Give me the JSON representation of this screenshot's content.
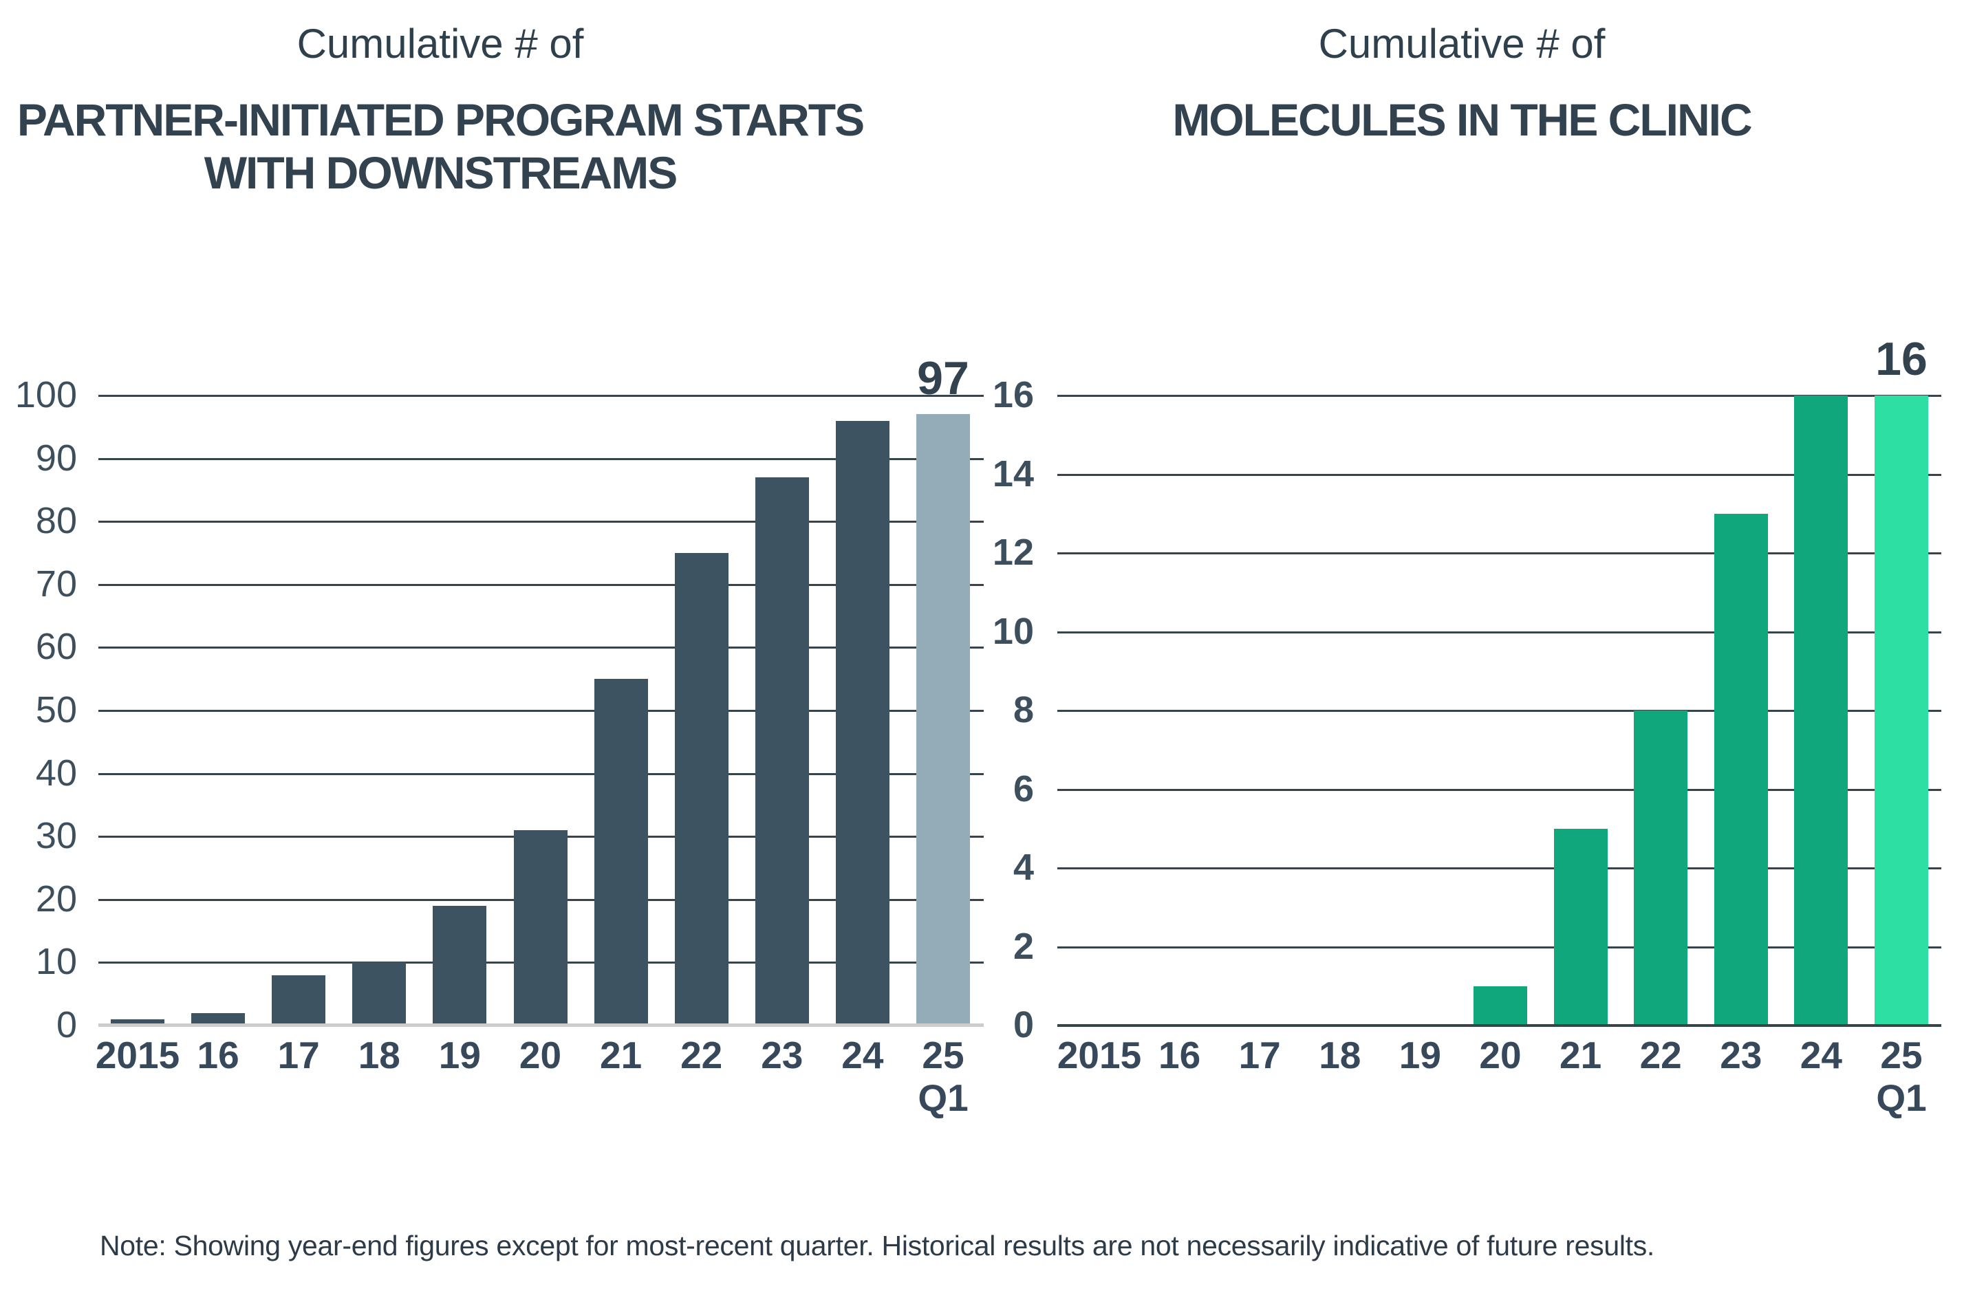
{
  "note": "Note: Showing year-end figures except for most-recent quarter. Historical results are not necessarily indicative of future results.",
  "colors": {
    "bar_dark_slate": "#3E5362",
    "bar_light_slate": "#94ABB8",
    "bar_dark_green": "#10A77C",
    "bar_light_green": "#2DDFA2",
    "gridline": "#38444C",
    "left_baseline": "#CBCCCD",
    "title_text": "#33424F",
    "tick_text": "#3D4E5D"
  },
  "chart_data": [
    {
      "type": "bar",
      "title_prefix": "Cumulative # of",
      "title_lines": [
        "PARTNER-INITIATED PROGRAM STARTS",
        "WITH DOWNSTREAMS"
      ],
      "title": "Cumulative # of Partner-Initiated Program Starts with Downstreams",
      "categories": [
        "2015",
        "16",
        "17",
        "18",
        "19",
        "20",
        "21",
        "22",
        "23",
        "24",
        "25 Q1"
      ],
      "values": [
        1,
        2,
        8,
        10,
        19,
        31,
        55,
        75,
        87,
        96,
        97
      ],
      "xlabel": "",
      "ylabel": "",
      "ylim": [
        0,
        100
      ],
      "ytick_step": 10,
      "yticks": [
        0,
        10,
        20,
        30,
        40,
        50,
        60,
        70,
        80,
        90,
        100
      ],
      "grid": true,
      "legend": false,
      "last_bar_label": "97",
      "bar_color": "#3E5362",
      "last_bar_color": "#94ABB8"
    },
    {
      "type": "bar",
      "title_prefix": "Cumulative # of",
      "title_lines": [
        "MOLECULES IN THE CLINIC"
      ],
      "title": "Cumulative # of Molecules in the Clinic",
      "categories": [
        "2015",
        "16",
        "17",
        "18",
        "19",
        "20",
        "21",
        "22",
        "23",
        "24",
        "25 Q1"
      ],
      "values": [
        0,
        0,
        0,
        0,
        0,
        1,
        5,
        8,
        13,
        16,
        16
      ],
      "xlabel": "",
      "ylabel": "",
      "ylim": [
        0,
        16
      ],
      "ytick_step": 2,
      "yticks": [
        0,
        2,
        4,
        6,
        8,
        10,
        12,
        14,
        16
      ],
      "grid": true,
      "legend": false,
      "last_bar_label": "16",
      "bar_color": "#10A77C",
      "last_bar_color": "#2DDFA2"
    }
  ]
}
